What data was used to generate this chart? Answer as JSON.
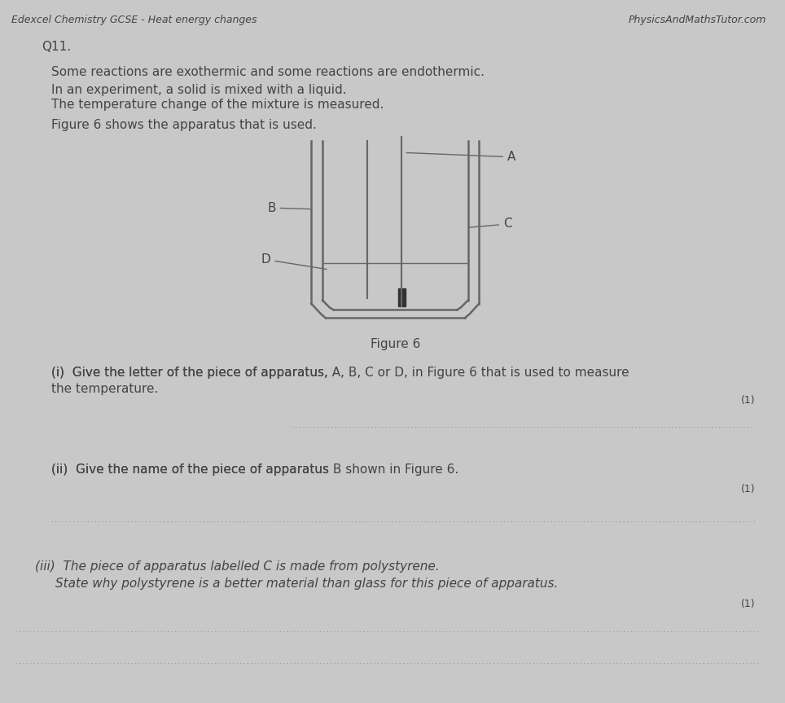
{
  "bg_color": "#c8c8c8",
  "page_bg": "#e8e8e8",
  "title_left": "Edexcel Chemistry GCSE - Heat energy changes",
  "title_right": "PhysicsAndMathsTutor.com",
  "q_number": "Q11.",
  "intro_line1": "Some reactions are exothermic and some reactions are endothermic.",
  "intro_line2": "In an experiment, a solid is mixed with a liquid.",
  "intro_line3": "The temperature change of the mixture is measured.",
  "intro_line4": "Figure 6 shows the apparatus that is used.",
  "figure_caption": "Figure 6",
  "q_i_prefix": "(i)  Give the letter of the piece of apparatus, ",
  "q_i_bold": "A, B, C",
  "q_i_mid": " or ",
  "q_i_bold2": "D",
  "q_i_suffix": ", in Figure 6 that is used to measure",
  "q_i_line2": "the temperature.",
  "q_ii_prefix": "(ii)  Give the name of the piece of apparatus ",
  "q_ii_bold": "B",
  "q_ii_suffix": " shown in Figure 6.",
  "q_iii_line1a": "(iii)  The piece of apparatus labelled ",
  "q_iii_line1b": "C",
  "q_iii_line1c": " is made from polystyrene.",
  "q_iii_line2": "  State why polystyrene is a better material than glass for this piece of apparatus.",
  "mark_1": "(1)",
  "text_color": "#444444",
  "line_color": "#999999",
  "dark_line_color": "#666666"
}
